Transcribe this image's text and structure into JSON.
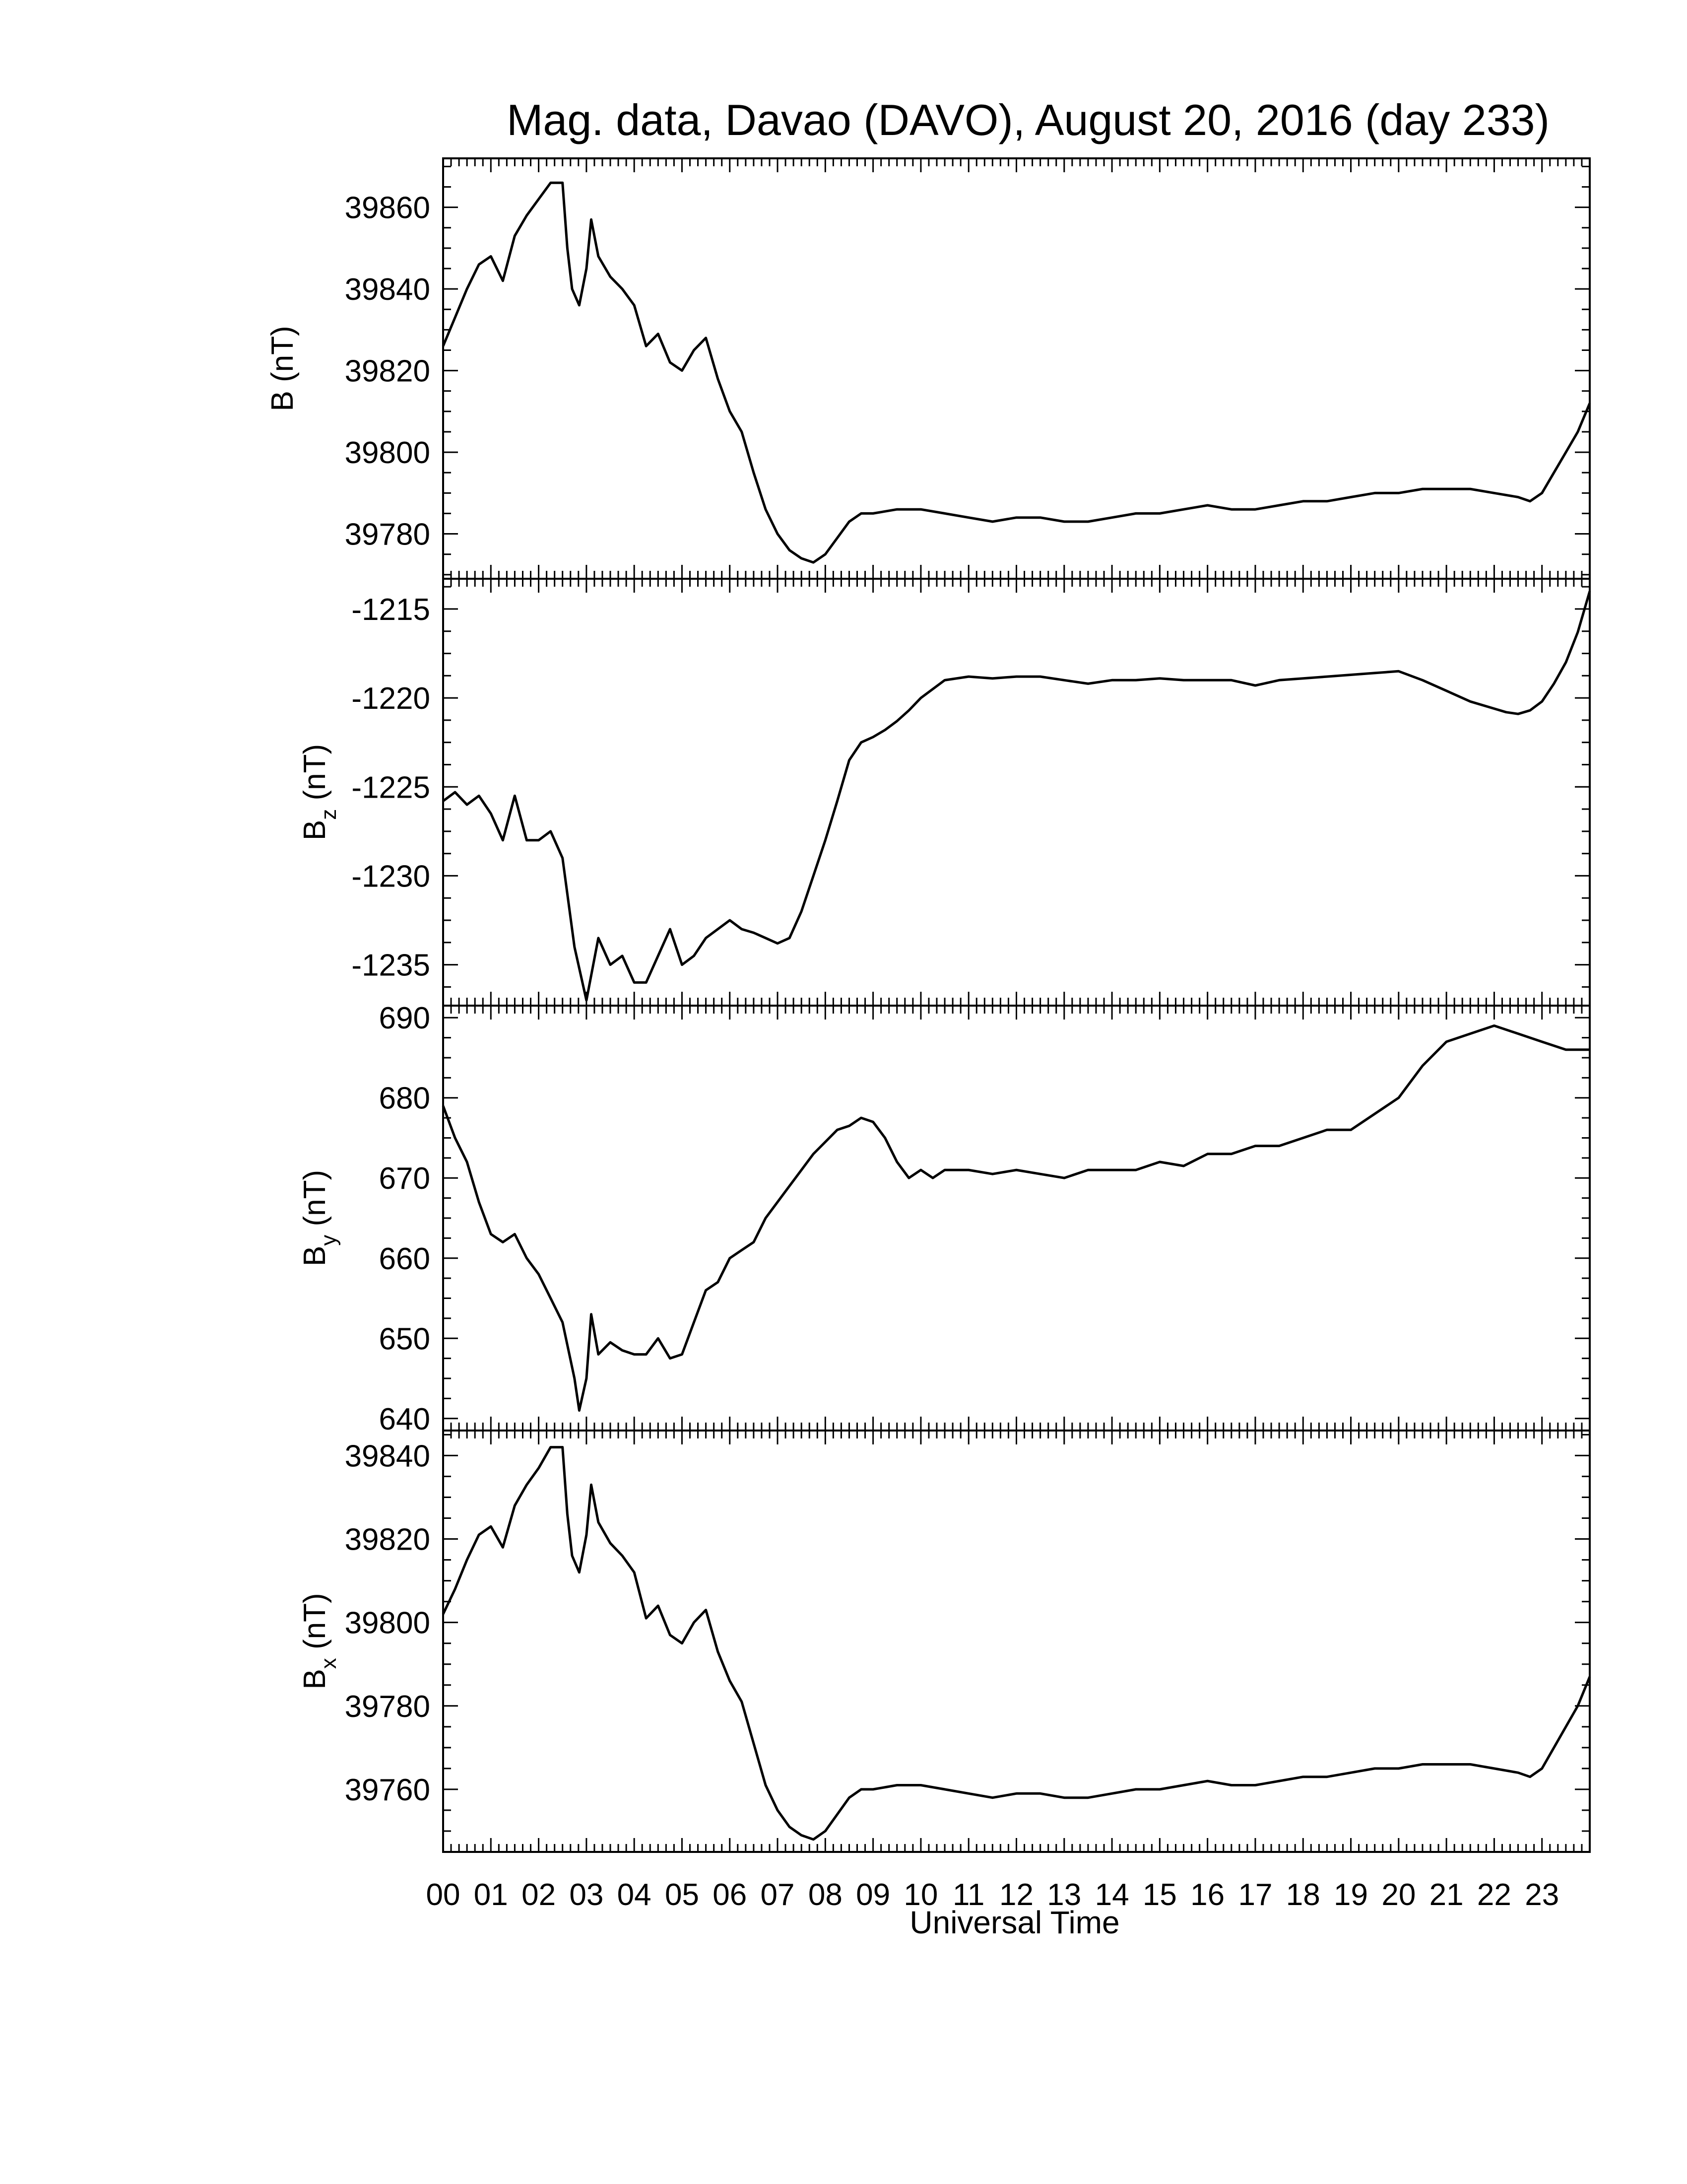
{
  "title": "Mag. data, Davao (DAVO), August 20, 2016 (day 233)",
  "xlabel": "Universal Time",
  "x_tick_labels": [
    "00",
    "01",
    "02",
    "03",
    "04",
    "05",
    "06",
    "07",
    "08",
    "09",
    "10",
    "11",
    "12",
    "13",
    "14",
    "15",
    "16",
    "17",
    "18",
    "19",
    "20",
    "21",
    "22",
    "23"
  ],
  "chart_data": [
    {
      "type": "line",
      "ylabel_main": "B",
      "ylabel_sub": "",
      "ylabel_unit": "(nT)",
      "xlim": [
        0,
        24
      ],
      "ylim": [
        39769,
        39872
      ],
      "yticks": [
        39780,
        39800,
        39820,
        39840,
        39860
      ],
      "x": [
        0,
        0.25,
        0.5,
        0.75,
        1,
        1.25,
        1.5,
        1.75,
        2,
        2.25,
        2.5,
        2.6,
        2.7,
        2.85,
        3,
        3.1,
        3.25,
        3.5,
        3.75,
        4,
        4.25,
        4.5,
        4.75,
        5,
        5.25,
        5.5,
        5.75,
        6,
        6.25,
        6.5,
        6.75,
        7,
        7.25,
        7.5,
        7.75,
        8,
        8.25,
        8.5,
        8.75,
        9,
        9.5,
        10,
        10.5,
        11,
        11.5,
        12,
        12.5,
        13,
        13.5,
        14,
        14.5,
        15,
        15.5,
        16,
        16.5,
        17,
        17.5,
        18,
        18.5,
        19,
        19.5,
        20,
        20.5,
        21,
        21.5,
        22,
        22.5,
        22.75,
        23,
        23.25,
        23.5,
        23.75,
        24
      ],
      "y": [
        39826,
        39833,
        39840,
        39846,
        39848,
        39842,
        39853,
        39858,
        39862,
        39866,
        39866,
        39850,
        39840,
        39836,
        39845,
        39857,
        39848,
        39843,
        39840,
        39836,
        39826,
        39829,
        39822,
        39820,
        39825,
        39828,
        39818,
        39810,
        39805,
        39795,
        39786,
        39780,
        39776,
        39774,
        39773,
        39775,
        39779,
        39783,
        39785,
        39785,
        39786,
        39786,
        39785,
        39784,
        39783,
        39784,
        39784,
        39783,
        39783,
        39784,
        39785,
        39785,
        39786,
        39787,
        39786,
        39786,
        39787,
        39788,
        39788,
        39789,
        39790,
        39790,
        39791,
        39791,
        39791,
        39790,
        39789,
        39788,
        39790,
        39795,
        39800,
        39805,
        39812
      ]
    },
    {
      "type": "line",
      "ylabel_main": "B",
      "ylabel_sub": "z",
      "ylabel_unit": "(nT)",
      "xlim": [
        0,
        24
      ],
      "ylim": [
        -1237.3,
        -1213.3
      ],
      "yticks": [
        -1235,
        -1230,
        -1225,
        -1220,
        -1215
      ],
      "x": [
        0,
        0.25,
        0.5,
        0.75,
        1,
        1.25,
        1.5,
        1.75,
        2,
        2.25,
        2.5,
        2.75,
        3,
        3.25,
        3.5,
        3.75,
        4,
        4.25,
        4.5,
        4.75,
        5,
        5.25,
        5.5,
        5.75,
        6,
        6.25,
        6.5,
        6.75,
        7,
        7.25,
        7.5,
        7.75,
        8,
        8.25,
        8.5,
        8.75,
        9,
        9.25,
        9.5,
        9.75,
        10,
        10.5,
        11,
        11.5,
        12,
        12.5,
        13,
        13.5,
        14,
        14.5,
        15,
        15.5,
        16,
        16.5,
        17,
        17.5,
        18,
        18.5,
        19,
        19.5,
        20,
        20.5,
        21,
        21.5,
        22,
        22.25,
        22.5,
        22.75,
        23,
        23.25,
        23.5,
        23.75,
        24
      ],
      "y": [
        -1225.8,
        -1225.3,
        -1226,
        -1225.5,
        -1226.5,
        -1228,
        -1225.5,
        -1228,
        -1228,
        -1227.5,
        -1229,
        -1234,
        -1237,
        -1233.5,
        -1235,
        -1234.5,
        -1236,
        -1236,
        -1234.5,
        -1233,
        -1235,
        -1234.5,
        -1233.5,
        -1233,
        -1232.5,
        -1233,
        -1233.2,
        -1233.5,
        -1233.8,
        -1233.5,
        -1232,
        -1230,
        -1228,
        -1225.8,
        -1223.5,
        -1222.5,
        -1222.2,
        -1221.8,
        -1221.3,
        -1220.7,
        -1220,
        -1219,
        -1218.8,
        -1218.9,
        -1218.8,
        -1218.8,
        -1219,
        -1219.2,
        -1219,
        -1219,
        -1218.9,
        -1219,
        -1219,
        -1219,
        -1219.3,
        -1219,
        -1218.9,
        -1218.8,
        -1218.7,
        -1218.6,
        -1218.5,
        -1219,
        -1219.6,
        -1220.2,
        -1220.6,
        -1220.8,
        -1220.9,
        -1220.7,
        -1220.2,
        -1219.2,
        -1218,
        -1216.3,
        -1214
      ]
    },
    {
      "type": "line",
      "ylabel_main": "B",
      "ylabel_sub": "y",
      "ylabel_unit": "(nT)",
      "xlim": [
        0,
        24
      ],
      "ylim": [
        638.5,
        691.5
      ],
      "yticks": [
        640,
        650,
        660,
        670,
        680,
        690
      ],
      "x": [
        0,
        0.25,
        0.5,
        0.75,
        1,
        1.25,
        1.5,
        1.75,
        2,
        2.25,
        2.5,
        2.75,
        2.85,
        3,
        3.1,
        3.25,
        3.5,
        3.75,
        4,
        4.25,
        4.5,
        4.75,
        5,
        5.25,
        5.5,
        5.75,
        6,
        6.25,
        6.5,
        6.75,
        7,
        7.25,
        7.5,
        7.75,
        8,
        8.25,
        8.5,
        8.75,
        9,
        9.25,
        9.5,
        9.75,
        10,
        10.25,
        10.5,
        11,
        11.5,
        12,
        12.5,
        13,
        13.5,
        14,
        14.5,
        15,
        15.5,
        16,
        16.5,
        17,
        17.5,
        18,
        18.5,
        19,
        19.5,
        20,
        20.5,
        21,
        21.5,
        22,
        22.5,
        23,
        23.5,
        24
      ],
      "y": [
        679,
        675,
        672,
        667,
        663,
        662,
        663,
        660,
        658,
        655,
        652,
        645,
        641,
        645,
        653,
        648,
        649.5,
        648.5,
        648,
        648,
        650,
        647.5,
        648,
        652,
        656,
        657,
        660,
        661,
        662,
        665,
        667,
        669,
        671,
        673,
        674.5,
        676,
        676.5,
        677.5,
        677,
        675,
        672,
        670,
        671,
        670,
        671,
        671,
        670.5,
        671,
        670.5,
        670,
        671,
        671,
        671,
        672,
        671.5,
        673,
        673,
        674,
        674,
        675,
        676,
        676,
        678,
        680,
        684,
        687,
        688,
        689,
        688,
        687,
        686,
        686
      ]
    },
    {
      "type": "line",
      "ylabel_main": "B",
      "ylabel_sub": "x",
      "ylabel_unit": "(nT)",
      "xlim": [
        0,
        24
      ],
      "ylim": [
        39745,
        39846
      ],
      "yticks": [
        39760,
        39780,
        39800,
        39820,
        39840
      ],
      "x": [
        0,
        0.25,
        0.5,
        0.75,
        1,
        1.25,
        1.5,
        1.75,
        2,
        2.25,
        2.5,
        2.6,
        2.7,
        2.85,
        3,
        3.1,
        3.25,
        3.5,
        3.75,
        4,
        4.25,
        4.5,
        4.75,
        5,
        5.25,
        5.5,
        5.75,
        6,
        6.25,
        6.5,
        6.75,
        7,
        7.25,
        7.5,
        7.75,
        8,
        8.25,
        8.5,
        8.75,
        9,
        9.5,
        10,
        10.5,
        11,
        11.5,
        12,
        12.5,
        13,
        13.5,
        14,
        14.5,
        15,
        15.5,
        16,
        16.5,
        17,
        17.5,
        18,
        18.5,
        19,
        19.5,
        20,
        20.5,
        21,
        21.5,
        22,
        22.5,
        22.75,
        23,
        23.25,
        23.5,
        23.75,
        24
      ],
      "y": [
        39802,
        39808,
        39815,
        39821,
        39823,
        39818,
        39828,
        39833,
        39837,
        39842,
        39842,
        39826,
        39816,
        39812,
        39821,
        39833,
        39824,
        39819,
        39816,
        39812,
        39801,
        39804,
        39797,
        39795,
        39800,
        39803,
        39793,
        39786,
        39781,
        39771,
        39761,
        39755,
        39751,
        39749,
        39748,
        39750,
        39754,
        39758,
        39760,
        39760,
        39761,
        39761,
        39760,
        39759,
        39758,
        39759,
        39759,
        39758,
        39758,
        39759,
        39760,
        39760,
        39761,
        39762,
        39761,
        39761,
        39762,
        39763,
        39763,
        39764,
        39765,
        39765,
        39766,
        39766,
        39766,
        39765,
        39764,
        39763,
        39765,
        39770,
        39775,
        39780,
        39787
      ]
    }
  ]
}
